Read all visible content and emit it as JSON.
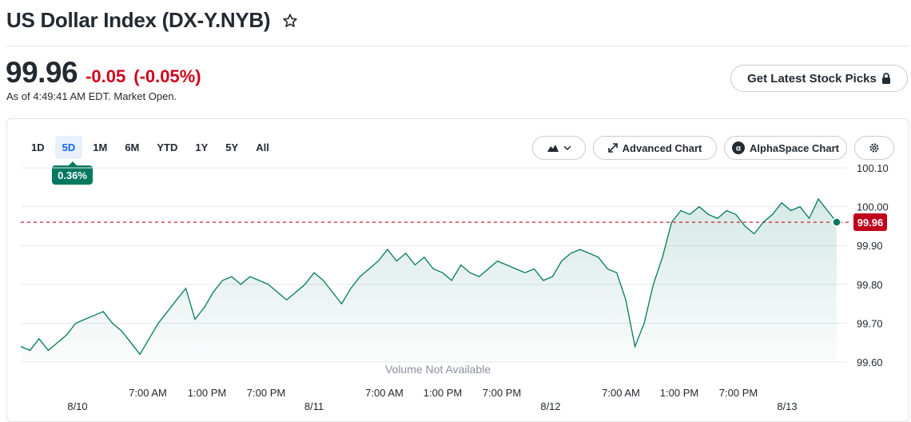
{
  "header": {
    "title": "US Dollar Index (DX-Y.NYB)"
  },
  "quote": {
    "price": "99.96",
    "change": "-0.05",
    "change_percent": "(-0.05%)",
    "as_of": "As of 4:49:41 AM EDT. Market Open."
  },
  "actions": {
    "latest_picks": "Get Latest Stock Picks"
  },
  "toolbar": {
    "ranges": [
      "1D",
      "5D",
      "1M",
      "6M",
      "YTD",
      "1Y",
      "5Y",
      "All"
    ],
    "active_range": "5D",
    "range_change": "0.36%",
    "advanced_chart": "Advanced Chart",
    "alphaspace_chart": "AlphaSpace Chart"
  },
  "colors": {
    "line": "#00795f",
    "negative": "#d0021b",
    "accent": "#0f69ff",
    "prev_close": "#d0021b"
  },
  "chart_data": {
    "type": "area",
    "title": "",
    "xlabel": "",
    "ylabel": "",
    "ylim": [
      99.6,
      100.1
    ],
    "y_ticks": [
      "100.10",
      "100.00",
      "99.90",
      "99.80",
      "99.70",
      "99.60"
    ],
    "x_time_labels": [
      "7:00 AM",
      "1:00 PM",
      "7:00 PM",
      "7:00 AM",
      "1:00 PM",
      "7:00 PM",
      "7:00 AM",
      "1:00 PM",
      "7:00 PM"
    ],
    "x_date_labels": [
      "8/10",
      "8/11",
      "8/12",
      "8/13"
    ],
    "previous_close": 99.96,
    "last_value_label": "99.96",
    "volume_note": "Volume Not Available",
    "series": [
      {
        "values": [
          99.64,
          99.63,
          99.66,
          99.63,
          99.65,
          99.67,
          99.7,
          99.71,
          99.72,
          99.73,
          99.7,
          99.68,
          99.65,
          99.62,
          99.66,
          99.7,
          99.73,
          99.76,
          99.79,
          99.71,
          99.74,
          99.78,
          99.81,
          99.82,
          99.8,
          99.82,
          99.81,
          99.8,
          99.78,
          99.76,
          99.78,
          99.8,
          99.83,
          99.81,
          99.78,
          99.75,
          99.79,
          99.82,
          99.84,
          99.86,
          99.89,
          99.86,
          99.88,
          99.85,
          99.87,
          99.84,
          99.83,
          99.81,
          99.85,
          99.83,
          99.82,
          99.84,
          99.86,
          99.85,
          99.84,
          99.83,
          99.84,
          99.81,
          99.82,
          99.86,
          99.88,
          99.89,
          99.88,
          99.87,
          99.84,
          99.83,
          99.76,
          99.64,
          99.7,
          99.8,
          99.87,
          99.96,
          99.99,
          99.98,
          100.0,
          99.98,
          99.97,
          99.99,
          99.98,
          99.95,
          99.93,
          99.96,
          99.98,
          100.01,
          99.99,
          100.0,
          99.97,
          100.02,
          99.99,
          99.96
        ]
      }
    ]
  }
}
